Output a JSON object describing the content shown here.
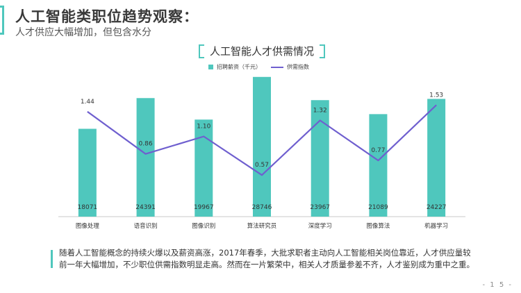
{
  "header": {
    "title": "人工智能类职位趋势观察：",
    "subtitle": "人才供应大幅增加，但包含水分"
  },
  "chart_data": {
    "type": "bar",
    "title": "人工智能人才供需情况",
    "categories": [
      "图像处理",
      "语音识别",
      "图像识别",
      "算法研究员",
      "深度学习",
      "图像算法",
      "机器学习"
    ],
    "series": [
      {
        "name": "招聘薪资（千元）",
        "kind": "bar",
        "color": "#4fc7bd",
        "values": [
          18071,
          24391,
          19967,
          28746,
          23967,
          21089,
          24227
        ]
      },
      {
        "name": "供需指数",
        "kind": "line",
        "color": "#6f5fcf",
        "values": [
          1.44,
          0.86,
          1.1,
          0.57,
          1.32,
          0.77,
          1.53
        ]
      }
    ],
    "bar_value_labels": [
      "18071",
      "24391",
      "19967",
      "28746",
      "23967",
      "21089",
      "24227"
    ],
    "line_value_labels": [
      "1.44",
      "0.86",
      "1.10",
      "0.57",
      "1.32",
      "0.77",
      "1.53"
    ],
    "bar_ylim": [
      0,
      30000
    ],
    "line_ylim": [
      0,
      2.0
    ],
    "legend_position": "top-center",
    "grid": false
  },
  "footer": {
    "note": "随着人工智能概念的持续火爆以及薪资高涨，2017年春季，大批求职者主动向人工智能相关岗位靠近，人才供应量较前一年大幅增加，不少职位供需指数明显走高。然而在一片繁荣中，相关人才质量参差不齐，人才鉴别成为重中之重。",
    "page_number": "- 1 5 -"
  }
}
